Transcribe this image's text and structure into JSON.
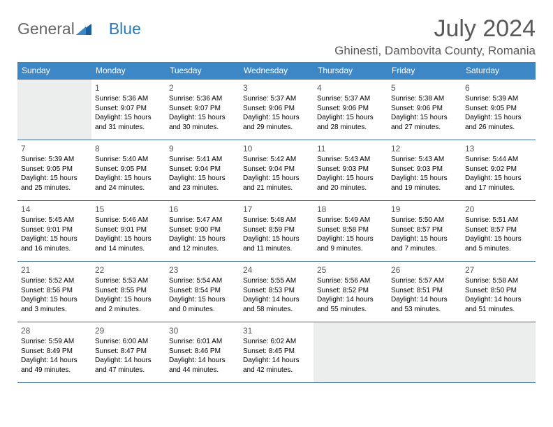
{
  "logo": {
    "text1": "General",
    "text2": "Blue"
  },
  "title": "July 2024",
  "location": "Ghinesti, Dambovita County, Romania",
  "colors": {
    "header_bg": "#3d87c7",
    "header_text": "#ffffff",
    "border": "#3d6a93",
    "empty_bg": "#eceded",
    "title_color": "#595959",
    "body_text": "#000000"
  },
  "daynames": [
    "Sunday",
    "Monday",
    "Tuesday",
    "Wednesday",
    "Thursday",
    "Friday",
    "Saturday"
  ],
  "weeks": [
    [
      {
        "empty": true
      },
      {
        "n": "1",
        "sr": "Sunrise: 5:36 AM",
        "ss": "Sunset: 9:07 PM",
        "d1": "Daylight: 15 hours",
        "d2": "and 31 minutes."
      },
      {
        "n": "2",
        "sr": "Sunrise: 5:36 AM",
        "ss": "Sunset: 9:07 PM",
        "d1": "Daylight: 15 hours",
        "d2": "and 30 minutes."
      },
      {
        "n": "3",
        "sr": "Sunrise: 5:37 AM",
        "ss": "Sunset: 9:06 PM",
        "d1": "Daylight: 15 hours",
        "d2": "and 29 minutes."
      },
      {
        "n": "4",
        "sr": "Sunrise: 5:37 AM",
        "ss": "Sunset: 9:06 PM",
        "d1": "Daylight: 15 hours",
        "d2": "and 28 minutes."
      },
      {
        "n": "5",
        "sr": "Sunrise: 5:38 AM",
        "ss": "Sunset: 9:06 PM",
        "d1": "Daylight: 15 hours",
        "d2": "and 27 minutes."
      },
      {
        "n": "6",
        "sr": "Sunrise: 5:39 AM",
        "ss": "Sunset: 9:05 PM",
        "d1": "Daylight: 15 hours",
        "d2": "and 26 minutes."
      }
    ],
    [
      {
        "n": "7",
        "sr": "Sunrise: 5:39 AM",
        "ss": "Sunset: 9:05 PM",
        "d1": "Daylight: 15 hours",
        "d2": "and 25 minutes."
      },
      {
        "n": "8",
        "sr": "Sunrise: 5:40 AM",
        "ss": "Sunset: 9:05 PM",
        "d1": "Daylight: 15 hours",
        "d2": "and 24 minutes."
      },
      {
        "n": "9",
        "sr": "Sunrise: 5:41 AM",
        "ss": "Sunset: 9:04 PM",
        "d1": "Daylight: 15 hours",
        "d2": "and 23 minutes."
      },
      {
        "n": "10",
        "sr": "Sunrise: 5:42 AM",
        "ss": "Sunset: 9:04 PM",
        "d1": "Daylight: 15 hours",
        "d2": "and 21 minutes."
      },
      {
        "n": "11",
        "sr": "Sunrise: 5:43 AM",
        "ss": "Sunset: 9:03 PM",
        "d1": "Daylight: 15 hours",
        "d2": "and 20 minutes."
      },
      {
        "n": "12",
        "sr": "Sunrise: 5:43 AM",
        "ss": "Sunset: 9:03 PM",
        "d1": "Daylight: 15 hours",
        "d2": "and 19 minutes."
      },
      {
        "n": "13",
        "sr": "Sunrise: 5:44 AM",
        "ss": "Sunset: 9:02 PM",
        "d1": "Daylight: 15 hours",
        "d2": "and 17 minutes."
      }
    ],
    [
      {
        "n": "14",
        "sr": "Sunrise: 5:45 AM",
        "ss": "Sunset: 9:01 PM",
        "d1": "Daylight: 15 hours",
        "d2": "and 16 minutes."
      },
      {
        "n": "15",
        "sr": "Sunrise: 5:46 AM",
        "ss": "Sunset: 9:01 PM",
        "d1": "Daylight: 15 hours",
        "d2": "and 14 minutes."
      },
      {
        "n": "16",
        "sr": "Sunrise: 5:47 AM",
        "ss": "Sunset: 9:00 PM",
        "d1": "Daylight: 15 hours",
        "d2": "and 12 minutes."
      },
      {
        "n": "17",
        "sr": "Sunrise: 5:48 AM",
        "ss": "Sunset: 8:59 PM",
        "d1": "Daylight: 15 hours",
        "d2": "and 11 minutes."
      },
      {
        "n": "18",
        "sr": "Sunrise: 5:49 AM",
        "ss": "Sunset: 8:58 PM",
        "d1": "Daylight: 15 hours",
        "d2": "and 9 minutes."
      },
      {
        "n": "19",
        "sr": "Sunrise: 5:50 AM",
        "ss": "Sunset: 8:57 PM",
        "d1": "Daylight: 15 hours",
        "d2": "and 7 minutes."
      },
      {
        "n": "20",
        "sr": "Sunrise: 5:51 AM",
        "ss": "Sunset: 8:57 PM",
        "d1": "Daylight: 15 hours",
        "d2": "and 5 minutes."
      }
    ],
    [
      {
        "n": "21",
        "sr": "Sunrise: 5:52 AM",
        "ss": "Sunset: 8:56 PM",
        "d1": "Daylight: 15 hours",
        "d2": "and 3 minutes."
      },
      {
        "n": "22",
        "sr": "Sunrise: 5:53 AM",
        "ss": "Sunset: 8:55 PM",
        "d1": "Daylight: 15 hours",
        "d2": "and 2 minutes."
      },
      {
        "n": "23",
        "sr": "Sunrise: 5:54 AM",
        "ss": "Sunset: 8:54 PM",
        "d1": "Daylight: 15 hours",
        "d2": "and 0 minutes."
      },
      {
        "n": "24",
        "sr": "Sunrise: 5:55 AM",
        "ss": "Sunset: 8:53 PM",
        "d1": "Daylight: 14 hours",
        "d2": "and 58 minutes."
      },
      {
        "n": "25",
        "sr": "Sunrise: 5:56 AM",
        "ss": "Sunset: 8:52 PM",
        "d1": "Daylight: 14 hours",
        "d2": "and 55 minutes."
      },
      {
        "n": "26",
        "sr": "Sunrise: 5:57 AM",
        "ss": "Sunset: 8:51 PM",
        "d1": "Daylight: 14 hours",
        "d2": "and 53 minutes."
      },
      {
        "n": "27",
        "sr": "Sunrise: 5:58 AM",
        "ss": "Sunset: 8:50 PM",
        "d1": "Daylight: 14 hours",
        "d2": "and 51 minutes."
      }
    ],
    [
      {
        "n": "28",
        "sr": "Sunrise: 5:59 AM",
        "ss": "Sunset: 8:49 PM",
        "d1": "Daylight: 14 hours",
        "d2": "and 49 minutes."
      },
      {
        "n": "29",
        "sr": "Sunrise: 6:00 AM",
        "ss": "Sunset: 8:47 PM",
        "d1": "Daylight: 14 hours",
        "d2": "and 47 minutes."
      },
      {
        "n": "30",
        "sr": "Sunrise: 6:01 AM",
        "ss": "Sunset: 8:46 PM",
        "d1": "Daylight: 14 hours",
        "d2": "and 44 minutes."
      },
      {
        "n": "31",
        "sr": "Sunrise: 6:02 AM",
        "ss": "Sunset: 8:45 PM",
        "d1": "Daylight: 14 hours",
        "d2": "and 42 minutes."
      },
      {
        "empty": true
      },
      {
        "empty": true
      },
      {
        "empty": true
      }
    ]
  ]
}
